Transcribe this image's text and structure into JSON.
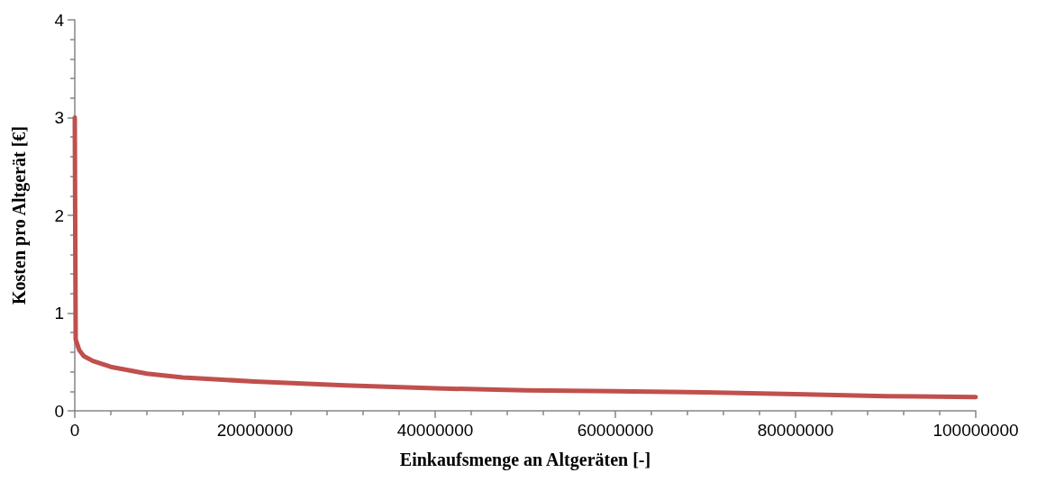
{
  "chart_data": {
    "type": "line",
    "xlabel": "Einkaufsmenge an Altgeräten [-]",
    "ylabel": "Kosten pro Altgerät [€]",
    "x": [
      0,
      100000,
      500000,
      1000000,
      2000000,
      4000000,
      8000000,
      12000000,
      16000000,
      20000000,
      30000000,
      40000000,
      50000000,
      60000000,
      70000000,
      80000000,
      90000000,
      100000000
    ],
    "series": [
      {
        "color": "#c0504d",
        "values": [
          3.0,
          0.73,
          0.62,
          0.56,
          0.51,
          0.45,
          0.38,
          0.34,
          0.32,
          0.3,
          0.26,
          0.23,
          0.21,
          0.2,
          0.19,
          0.17,
          0.15,
          0.14
        ]
      }
    ],
    "xlim": [
      0,
      100000000
    ],
    "xticks": [
      0,
      20000000,
      40000000,
      60000000,
      80000000,
      100000000
    ],
    "ylim": [
      0,
      4
    ],
    "yticks": [
      0,
      1,
      2,
      3,
      4
    ],
    "grid": false,
    "marker": "none",
    "line_style": "solid"
  }
}
